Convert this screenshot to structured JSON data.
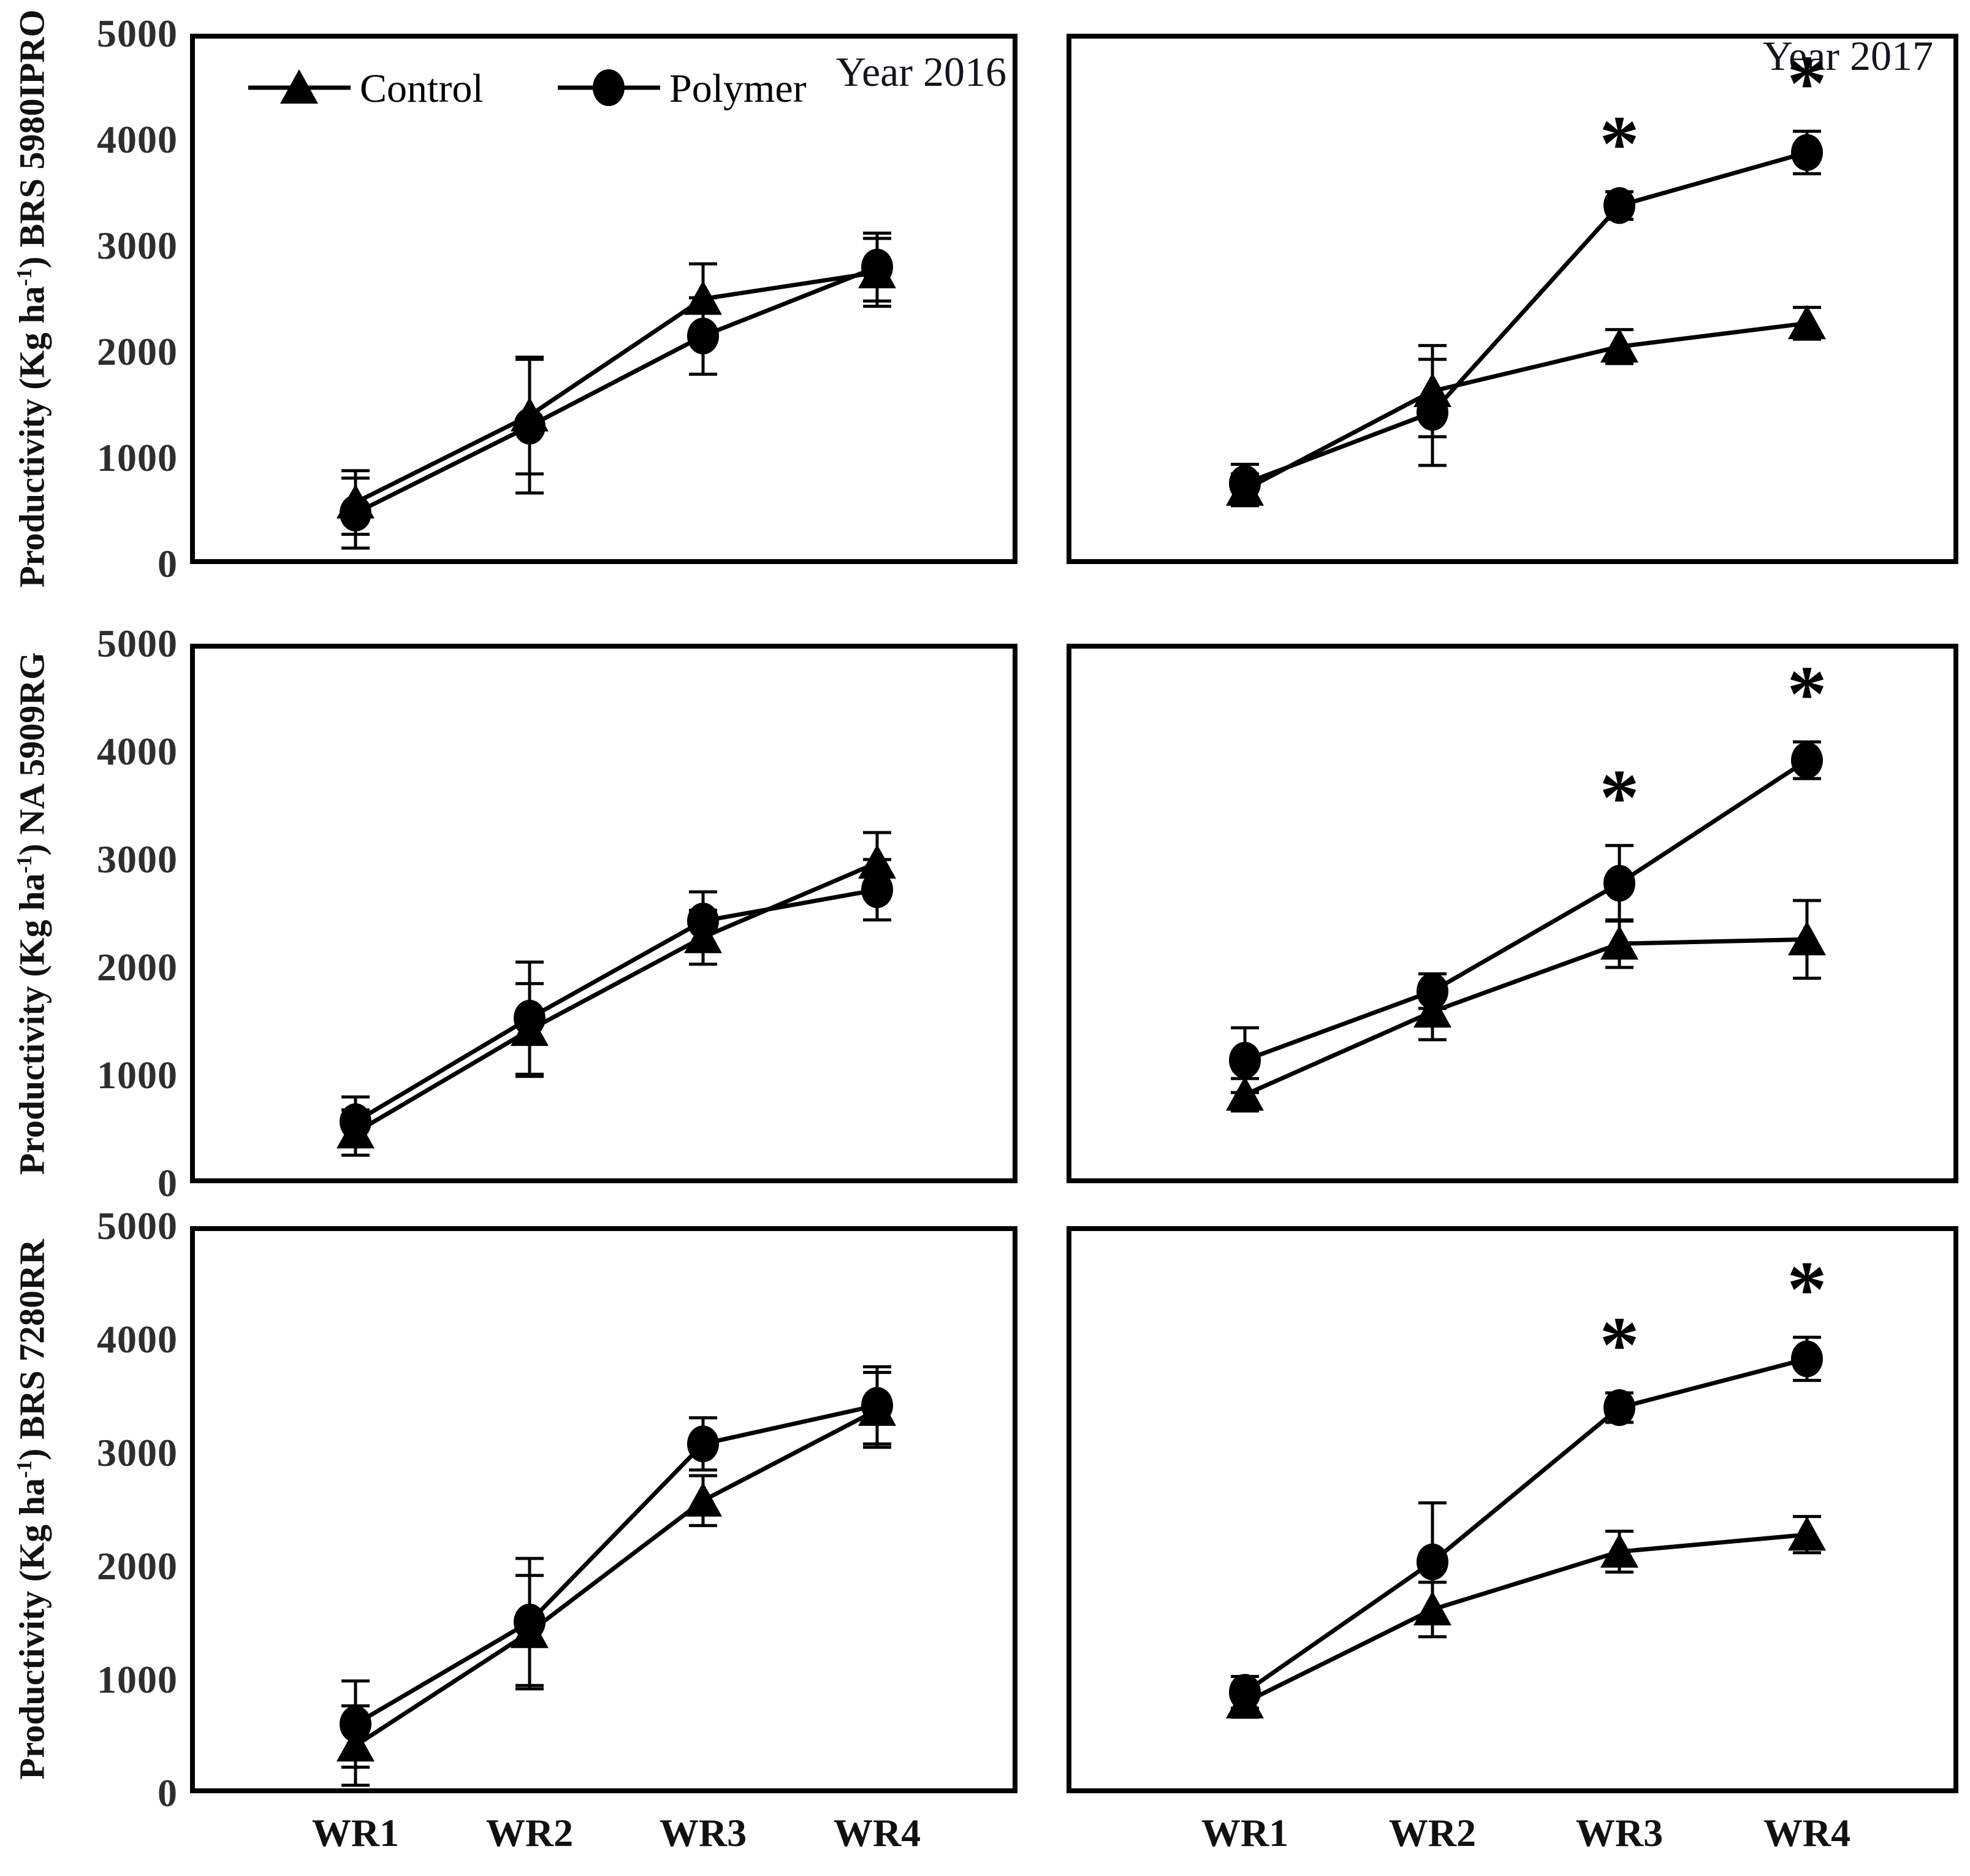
{
  "figure": {
    "year_labels": {
      "left": "Year 2016",
      "right": "Year 2017"
    },
    "legend": {
      "items": [
        {
          "label": "Control",
          "marker": "triangle"
        },
        {
          "label": "Polymer",
          "marker": "circle"
        }
      ]
    },
    "y_axis": {
      "max": 5000,
      "ticks": [
        0,
        1000,
        2000,
        3000,
        4000,
        5000
      ],
      "titles": [
        {
          "pre": "Productivity (Kg ha",
          "sup": "-1",
          "post": ") BRS 5980IPRO"
        },
        {
          "pre": "Productivity (Kg ha",
          "sup": "-1",
          "post": ") NA 5909RG"
        },
        {
          "pre": "Productivity (Kg ha",
          "sup": "-1",
          "post": ") BRS 7280RR"
        }
      ]
    },
    "x_axis": {
      "categories": [
        "WR1",
        "WR2",
        "WR3",
        "WR4"
      ]
    },
    "significance_symbol": "*"
  },
  "chart_data": [
    {
      "id": "brs5980ipro-2016",
      "type": "line",
      "row": 0,
      "col": 0,
      "cultivar": "BRS 5980IPRO",
      "year": "Year 2016",
      "show_legend": true,
      "categories": [
        "WR1",
        "WR2",
        "WR3",
        "WR4"
      ],
      "ylim": [
        0,
        5000
      ],
      "ylabel": "Productivity (Kg ha-1) BRS 5980IPRO",
      "series": [
        {
          "name": "Control",
          "marker": "triangle",
          "values": [
            580,
            1400,
            2500,
            2750
          ],
          "errors": [
            300,
            550,
            330,
            320
          ],
          "significant": [
            false,
            false,
            false,
            false
          ]
        },
        {
          "name": "Polymer",
          "marker": "circle",
          "values": [
            480,
            1300,
            2150,
            2800
          ],
          "errors": [
            330,
            630,
            360,
            320
          ],
          "significant": [
            false,
            false,
            false,
            false
          ]
        }
      ]
    },
    {
      "id": "brs5980ipro-2017",
      "type": "line",
      "row": 0,
      "col": 1,
      "cultivar": "BRS 5980IPRO",
      "year": "Year 2017",
      "show_legend": false,
      "categories": [
        "WR1",
        "WR2",
        "WR3",
        "WR4"
      ],
      "ylim": [
        0,
        5000
      ],
      "ylabel": "Productivity (Kg ha-1) BRS 5980IPRO",
      "series": [
        {
          "name": "Control",
          "marker": "triangle",
          "values": [
            700,
            1630,
            2050,
            2270
          ],
          "errors": [
            150,
            430,
            160,
            150
          ],
          "significant": [
            false,
            false,
            false,
            false
          ]
        },
        {
          "name": "Polymer",
          "marker": "circle",
          "values": [
            760,
            1430,
            3380,
            3880
          ],
          "errors": [
            180,
            500,
            130,
            200
          ],
          "significant": [
            false,
            false,
            true,
            true
          ]
        }
      ]
    },
    {
      "id": "na5909rg-2016",
      "type": "line",
      "row": 1,
      "col": 0,
      "cultivar": "NA 5909RG",
      "year": "Year 2016",
      "show_legend": false,
      "categories": [
        "WR1",
        "WR2",
        "WR3",
        "WR4"
      ],
      "ylim": [
        0,
        5000
      ],
      "ylabel": "Productivity (Kg ha-1) NA 5909RG",
      "series": [
        {
          "name": "Control",
          "marker": "triangle",
          "values": [
            470,
            1420,
            2280,
            2970
          ],
          "errors": [
            210,
            430,
            250,
            280
          ],
          "significant": [
            false,
            false,
            false,
            false
          ]
        },
        {
          "name": "Polymer",
          "marker": "circle",
          "values": [
            570,
            1530,
            2430,
            2720
          ],
          "errors": [
            230,
            520,
            270,
            280
          ],
          "significant": [
            false,
            false,
            false,
            false
          ]
        }
      ]
    },
    {
      "id": "na5909rg-2017",
      "type": "line",
      "row": 1,
      "col": 1,
      "cultivar": "NA 5909RG",
      "year": "Year 2017",
      "show_legend": false,
      "categories": [
        "WR1",
        "WR2",
        "WR3",
        "WR4"
      ],
      "ylim": [
        0,
        5000
      ],
      "ylabel": "Productivity (Kg ha-1) NA 5909RG",
      "series": [
        {
          "name": "Control",
          "marker": "triangle",
          "values": [
            820,
            1590,
            2220,
            2260
          ],
          "errors": [
            150,
            260,
            220,
            360
          ],
          "significant": [
            false,
            false,
            false,
            false
          ]
        },
        {
          "name": "Polymer",
          "marker": "circle",
          "values": [
            1140,
            1780,
            2780,
            3920
          ],
          "errors": [
            300,
            160,
            350,
            170
          ],
          "significant": [
            false,
            false,
            true,
            true
          ]
        }
      ]
    },
    {
      "id": "brs7280rr-2016",
      "type": "line",
      "row": 2,
      "col": 0,
      "cultivar": "BRS 7280RR",
      "year": "Year 2016",
      "show_legend": false,
      "categories": [
        "WR1",
        "WR2",
        "WR3",
        "WR4"
      ],
      "ylim": [
        0,
        5000
      ],
      "ylabel": "Productivity (Kg ha-1) BRS 7280RR",
      "series": [
        {
          "name": "Control",
          "marker": "triangle",
          "values": [
            420,
            1420,
            2580,
            3380
          ],
          "errors": [
            350,
            500,
            220,
            330
          ],
          "significant": [
            false,
            false,
            false,
            false
          ]
        },
        {
          "name": "Polymer",
          "marker": "circle",
          "values": [
            610,
            1510,
            3080,
            3420
          ],
          "errors": [
            380,
            560,
            230,
            340
          ],
          "significant": [
            false,
            false,
            false,
            false
          ]
        }
      ]
    },
    {
      "id": "brs7280rr-2017",
      "type": "line",
      "row": 2,
      "col": 1,
      "cultivar": "BRS 7280RR",
      "year": "Year 2017",
      "show_legend": false,
      "categories": [
        "WR1",
        "WR2",
        "WR3",
        "WR4"
      ],
      "ylim": [
        0,
        5000
      ],
      "ylabel": "Productivity (Kg ha-1) BRS 7280RR",
      "series": [
        {
          "name": "Control",
          "marker": "triangle",
          "values": [
            800,
            1620,
            2130,
            2280
          ],
          "errors": [
            130,
            240,
            180,
            160
          ],
          "significant": [
            false,
            false,
            false,
            false
          ]
        },
        {
          "name": "Polymer",
          "marker": "circle",
          "values": [
            890,
            2040,
            3400,
            3830
          ],
          "errors": [
            140,
            520,
            130,
            190
          ],
          "significant": [
            false,
            false,
            true,
            true
          ]
        }
      ]
    }
  ]
}
